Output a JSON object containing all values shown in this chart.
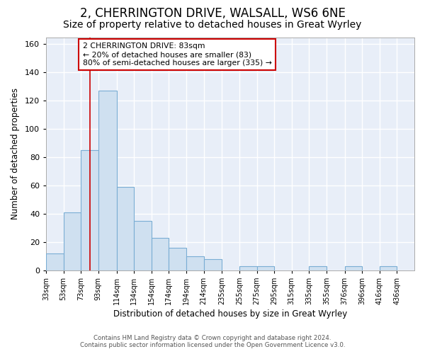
{
  "title": "2, CHERRINGTON DRIVE, WALSALL, WS6 6NE",
  "subtitle": "Size of property relative to detached houses in Great Wyrley",
  "xlabel": "Distribution of detached houses by size in Great Wyrley",
  "ylabel": "Number of detached properties",
  "footer_line1": "Contains HM Land Registry data © Crown copyright and database right 2024.",
  "footer_line2": "Contains public sector information licensed under the Open Government Licence v3.0.",
  "bin_labels": [
    "33sqm",
    "53sqm",
    "73sqm",
    "93sqm",
    "114sqm",
    "134sqm",
    "154sqm",
    "174sqm",
    "194sqm",
    "214sqm",
    "235sqm",
    "255sqm",
    "275sqm",
    "295sqm",
    "315sqm",
    "335sqm",
    "355sqm",
    "376sqm",
    "396sqm",
    "416sqm",
    "436sqm"
  ],
  "bar_values": [
    12,
    41,
    85,
    127,
    59,
    35,
    23,
    16,
    10,
    8,
    0,
    3,
    3,
    0,
    0,
    3,
    0,
    3,
    0,
    3
  ],
  "bar_color": "#cfe0f0",
  "bar_edge_color": "#7aadd4",
  "vline_x": 83,
  "vline_color": "#cc0000",
  "ylim": [
    0,
    165
  ],
  "yticks": [
    0,
    20,
    40,
    60,
    80,
    100,
    120,
    140,
    160
  ],
  "annotation_title": "2 CHERRINGTON DRIVE: 83sqm",
  "annotation_line1": "← 20% of detached houses are smaller (83)",
  "annotation_line2": "80% of semi-detached houses are larger (335) →",
  "annotation_box_color": "#ffffff",
  "annotation_box_edge": "#cc0000",
  "fig_bg_color": "#ffffff",
  "plot_bg_color": "#e8eef8",
  "grid_color": "#ffffff",
  "title_fontsize": 12,
  "subtitle_fontsize": 10
}
